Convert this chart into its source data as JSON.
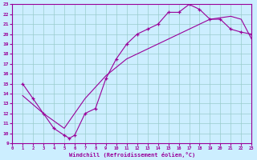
{
  "xlabel": "Windchill (Refroidissement éolien,°C)",
  "xlim": [
    0,
    23
  ],
  "ylim": [
    9,
    23
  ],
  "xticks": [
    0,
    1,
    2,
    3,
    4,
    5,
    6,
    7,
    8,
    9,
    10,
    11,
    12,
    13,
    14,
    15,
    16,
    17,
    18,
    19,
    20,
    21,
    22,
    23
  ],
  "yticks": [
    9,
    10,
    11,
    12,
    13,
    14,
    15,
    16,
    17,
    18,
    19,
    20,
    21,
    22,
    23
  ],
  "bg_color": "#cceeff",
  "line_color": "#990099",
  "grid_color": "#99cccc",
  "curve_x": [
    1,
    2,
    3,
    4,
    5,
    5.5,
    6,
    7,
    8,
    9,
    10,
    11,
    12,
    13,
    14,
    15,
    16,
    17,
    18,
    19,
    20,
    21,
    22,
    23
  ],
  "curve_y": [
    15,
    13.5,
    12,
    10.5,
    9.8,
    9.5,
    9.8,
    12,
    12.5,
    15.5,
    17.5,
    19,
    20,
    20.5,
    21,
    22.2,
    22.2,
    23,
    22.5,
    21.5,
    21.5,
    20.5,
    20.2,
    20
  ],
  "straight_x": [
    1,
    3,
    5,
    7,
    9,
    11,
    13,
    15,
    17,
    19,
    21,
    22,
    23
  ],
  "straight_y": [
    13.8,
    12,
    10.5,
    13.5,
    15.8,
    17.5,
    18.5,
    19.5,
    20.5,
    21.5,
    21.8,
    21.5,
    19.5
  ]
}
